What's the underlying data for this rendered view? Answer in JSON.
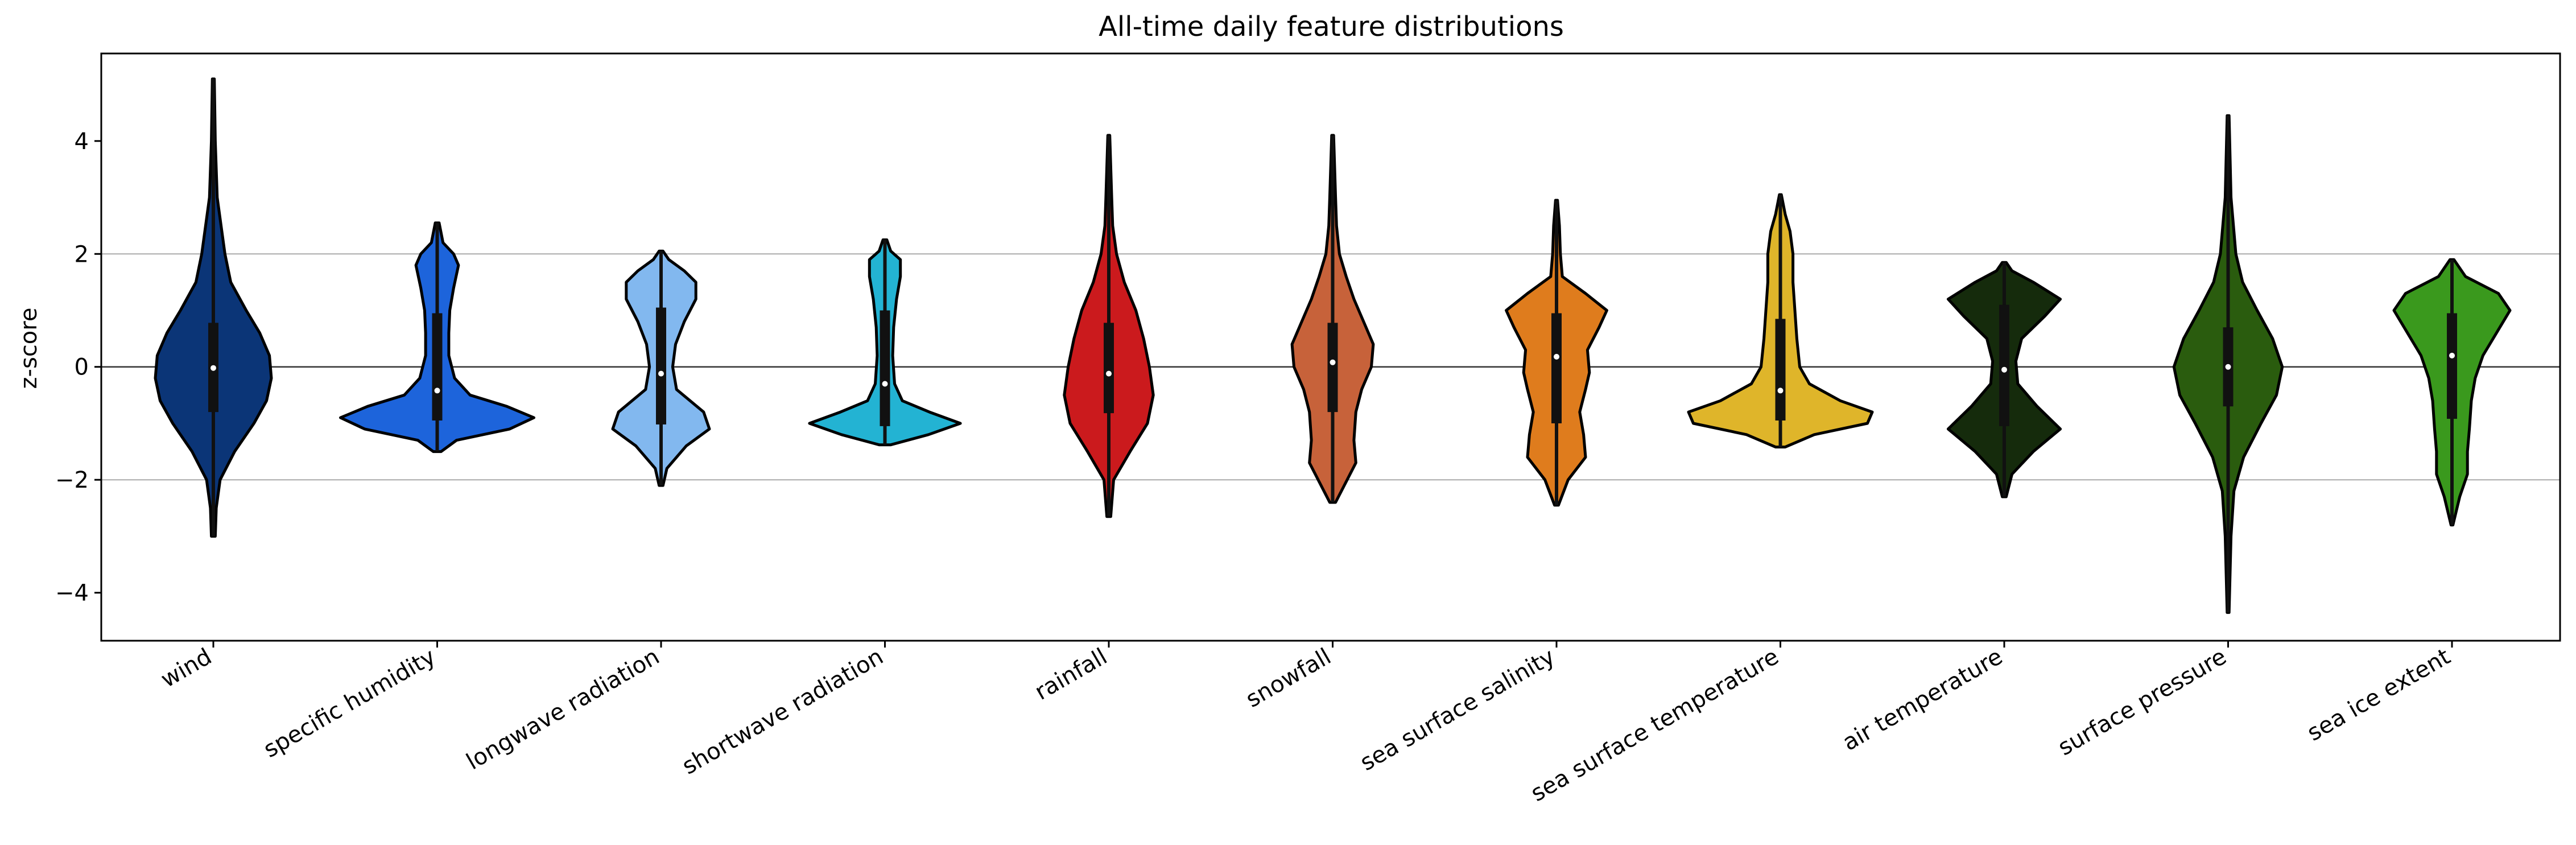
{
  "chart_data": {
    "type": "violin",
    "title": "All-time daily feature distributions",
    "xlabel": "",
    "ylabel": "z-score",
    "ylim": [
      -4.85,
      5.55
    ],
    "yticks": [
      -4,
      -2,
      0,
      2,
      4
    ],
    "ytick_labels": [
      "−4",
      "−2",
      "0",
      "2",
      "4"
    ],
    "hlines": [
      {
        "y": 2,
        "color": "#aaaaaa"
      },
      {
        "y": 0,
        "color": "#333333"
      },
      {
        "y": -2,
        "color": "#aaaaaa"
      }
    ],
    "categories": [
      "wind",
      "specific humidity",
      "longwave radiation",
      "shortwave radiation",
      "rainfall",
      "snowfall",
      "sea surface salinity",
      "sea surface temperature",
      "air temperature",
      "surface pressure",
      "sea ice extent"
    ],
    "violins": [
      {
        "color": "#0b3577",
        "min": -3.0,
        "max": 5.1,
        "q1": -0.8,
        "median": -0.02,
        "q3": 0.78,
        "density": [
          [
            -3.0,
            0.02
          ],
          [
            -2.5,
            0.03
          ],
          [
            -2.0,
            0.07
          ],
          [
            -1.5,
            0.22
          ],
          [
            -1.0,
            0.42
          ],
          [
            -0.6,
            0.55
          ],
          [
            -0.2,
            0.6
          ],
          [
            0.2,
            0.58
          ],
          [
            0.6,
            0.48
          ],
          [
            1.0,
            0.34
          ],
          [
            1.5,
            0.18
          ],
          [
            2.0,
            0.12
          ],
          [
            2.5,
            0.08
          ],
          [
            3.0,
            0.04
          ],
          [
            4.0,
            0.02
          ],
          [
            5.1,
            0.01
          ]
        ]
      },
      {
        "color": "#1d64db",
        "min": -1.5,
        "max": 2.55,
        "q1": -0.95,
        "median": -0.42,
        "q3": 0.95,
        "density": [
          [
            -1.5,
            0.04
          ],
          [
            -1.3,
            0.2
          ],
          [
            -1.1,
            0.75
          ],
          [
            -0.9,
            1.0
          ],
          [
            -0.7,
            0.72
          ],
          [
            -0.5,
            0.34
          ],
          [
            -0.2,
            0.18
          ],
          [
            0.2,
            0.12
          ],
          [
            0.6,
            0.12
          ],
          [
            1.0,
            0.13
          ],
          [
            1.4,
            0.17
          ],
          [
            1.8,
            0.22
          ],
          [
            2.0,
            0.17
          ],
          [
            2.2,
            0.06
          ],
          [
            2.55,
            0.02
          ]
        ]
      },
      {
        "color": "#82b8ef",
        "min": -2.1,
        "max": 2.05,
        "q1": -1.02,
        "median": -0.12,
        "q3": 1.05,
        "density": [
          [
            -2.1,
            0.02
          ],
          [
            -1.8,
            0.06
          ],
          [
            -1.4,
            0.26
          ],
          [
            -1.1,
            0.5
          ],
          [
            -0.8,
            0.44
          ],
          [
            -0.4,
            0.16
          ],
          [
            0.0,
            0.12
          ],
          [
            0.4,
            0.15
          ],
          [
            0.8,
            0.24
          ],
          [
            1.2,
            0.36
          ],
          [
            1.5,
            0.36
          ],
          [
            1.7,
            0.24
          ],
          [
            1.9,
            0.08
          ],
          [
            2.05,
            0.02
          ]
        ]
      },
      {
        "color": "#23b3d3",
        "min": -1.38,
        "max": 2.25,
        "q1": -1.05,
        "median": -0.3,
        "q3": 1.0,
        "density": [
          [
            -1.38,
            0.06
          ],
          [
            -1.2,
            0.45
          ],
          [
            -1.0,
            0.78
          ],
          [
            -0.8,
            0.46
          ],
          [
            -0.6,
            0.18
          ],
          [
            -0.3,
            0.1
          ],
          [
            0.2,
            0.08
          ],
          [
            0.7,
            0.09
          ],
          [
            1.2,
            0.12
          ],
          [
            1.6,
            0.16
          ],
          [
            1.9,
            0.16
          ],
          [
            2.05,
            0.06
          ],
          [
            2.25,
            0.02
          ]
        ]
      },
      {
        "color": "#cb1a1d",
        "min": -2.65,
        "max": 4.1,
        "q1": -0.82,
        "median": -0.12,
        "q3": 0.78,
        "density": [
          [
            -2.65,
            0.02
          ],
          [
            -2.0,
            0.05
          ],
          [
            -1.5,
            0.22
          ],
          [
            -1.0,
            0.4
          ],
          [
            -0.5,
            0.46
          ],
          [
            0.0,
            0.42
          ],
          [
            0.5,
            0.36
          ],
          [
            1.0,
            0.28
          ],
          [
            1.5,
            0.16
          ],
          [
            2.0,
            0.08
          ],
          [
            2.5,
            0.04
          ],
          [
            3.0,
            0.03
          ],
          [
            4.1,
            0.01
          ]
        ]
      },
      {
        "color": "#c7623a",
        "min": -2.4,
        "max": 4.1,
        "q1": -0.8,
        "median": 0.08,
        "q3": 0.78,
        "density": [
          [
            -2.4,
            0.03
          ],
          [
            -2.1,
            0.12
          ],
          [
            -1.7,
            0.24
          ],
          [
            -1.3,
            0.22
          ],
          [
            -0.8,
            0.24
          ],
          [
            -0.4,
            0.3
          ],
          [
            0.0,
            0.4
          ],
          [
            0.4,
            0.42
          ],
          [
            0.8,
            0.32
          ],
          [
            1.2,
            0.22
          ],
          [
            1.6,
            0.14
          ],
          [
            2.0,
            0.07
          ],
          [
            2.5,
            0.04
          ],
          [
            3.0,
            0.03
          ],
          [
            4.1,
            0.01
          ]
        ]
      },
      {
        "color": "#df7c1d",
        "min": -2.45,
        "max": 2.95,
        "q1": -1.0,
        "median": 0.18,
        "q3": 0.95,
        "density": [
          [
            -2.45,
            0.02
          ],
          [
            -2.0,
            0.12
          ],
          [
            -1.6,
            0.3
          ],
          [
            -1.2,
            0.28
          ],
          [
            -0.8,
            0.24
          ],
          [
            -0.4,
            0.3
          ],
          [
            -0.1,
            0.34
          ],
          [
            0.3,
            0.32
          ],
          [
            0.7,
            0.44
          ],
          [
            1.0,
            0.52
          ],
          [
            1.3,
            0.3
          ],
          [
            1.6,
            0.06
          ],
          [
            2.0,
            0.04
          ],
          [
            2.5,
            0.03
          ],
          [
            2.95,
            0.01
          ]
        ]
      },
      {
        "color": "#dfb52a",
        "min": -1.42,
        "max": 3.05,
        "q1": -0.95,
        "median": -0.42,
        "q3": 0.85,
        "density": [
          [
            -1.42,
            0.05
          ],
          [
            -1.2,
            0.35
          ],
          [
            -1.0,
            0.9
          ],
          [
            -0.8,
            0.95
          ],
          [
            -0.6,
            0.62
          ],
          [
            -0.3,
            0.3
          ],
          [
            0.0,
            0.2
          ],
          [
            0.5,
            0.17
          ],
          [
            1.0,
            0.15
          ],
          [
            1.5,
            0.13
          ],
          [
            2.0,
            0.13
          ],
          [
            2.4,
            0.1
          ],
          [
            2.7,
            0.05
          ],
          [
            3.05,
            0.01
          ]
        ]
      },
      {
        "color": "#152b0c",
        "min": -2.3,
        "max": 1.85,
        "q1": -1.05,
        "median": -0.05,
        "q3": 1.1,
        "density": [
          [
            -2.3,
            0.02
          ],
          [
            -1.9,
            0.08
          ],
          [
            -1.5,
            0.3
          ],
          [
            -1.1,
            0.58
          ],
          [
            -0.7,
            0.34
          ],
          [
            -0.3,
            0.14
          ],
          [
            0.1,
            0.12
          ],
          [
            0.5,
            0.18
          ],
          [
            0.9,
            0.42
          ],
          [
            1.2,
            0.58
          ],
          [
            1.5,
            0.3
          ],
          [
            1.7,
            0.08
          ],
          [
            1.85,
            0.02
          ]
        ]
      },
      {
        "color": "#2a5c0e",
        "min": -4.35,
        "max": 4.45,
        "q1": -0.7,
        "median": 0.0,
        "q3": 0.7,
        "density": [
          [
            -4.35,
            0.01
          ],
          [
            -3.0,
            0.03
          ],
          [
            -2.2,
            0.06
          ],
          [
            -1.6,
            0.16
          ],
          [
            -1.0,
            0.34
          ],
          [
            -0.5,
            0.5
          ],
          [
            0.0,
            0.56
          ],
          [
            0.5,
            0.46
          ],
          [
            1.0,
            0.3
          ],
          [
            1.5,
            0.15
          ],
          [
            2.0,
            0.08
          ],
          [
            3.0,
            0.03
          ],
          [
            4.45,
            0.01
          ]
        ]
      },
      {
        "color": "#3a991d",
        "min": -2.8,
        "max": 1.9,
        "q1": -0.92,
        "median": 0.2,
        "q3": 0.95,
        "density": [
          [
            -2.8,
            0.01
          ],
          [
            -2.3,
            0.08
          ],
          [
            -1.9,
            0.16
          ],
          [
            -1.5,
            0.16
          ],
          [
            -1.1,
            0.18
          ],
          [
            -0.6,
            0.2
          ],
          [
            -0.2,
            0.24
          ],
          [
            0.2,
            0.32
          ],
          [
            0.6,
            0.46
          ],
          [
            1.0,
            0.6
          ],
          [
            1.3,
            0.48
          ],
          [
            1.6,
            0.14
          ],
          [
            1.9,
            0.02
          ]
        ]
      }
    ]
  }
}
